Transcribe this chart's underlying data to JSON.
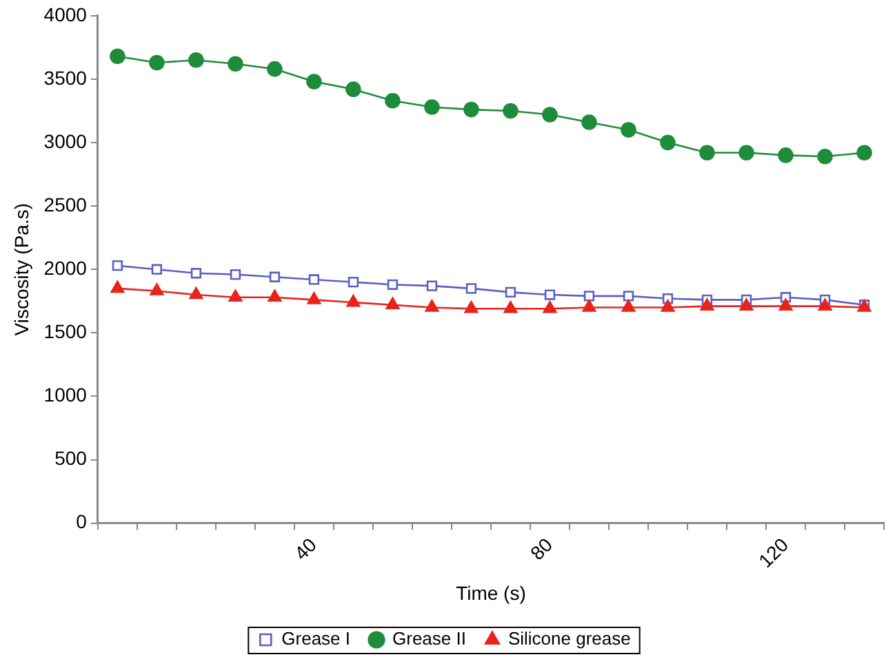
{
  "chart_data": {
    "type": "line",
    "xlabel": "Time (s)",
    "ylabel": "Viscosity (Pa.s)",
    "categories": [
      null,
      null,
      null,
      null,
      null,
      "40",
      null,
      null,
      null,
      null,
      null,
      "80",
      null,
      null,
      null,
      null,
      null,
      "120",
      null,
      null
    ],
    "ylim": [
      0,
      4000
    ],
    "yticks": [
      0,
      500,
      1000,
      1500,
      2000,
      2500,
      3000,
      3500,
      4000
    ],
    "grid": false,
    "legend": "bottom",
    "series": [
      {
        "name": "Grease I",
        "color": "#5a5fc4",
        "marker": "square",
        "values": [
          2030,
          2000,
          1970,
          1960,
          1940,
          1920,
          1900,
          1880,
          1870,
          1850,
          1820,
          1800,
          1790,
          1790,
          1770,
          1760,
          1760,
          1780,
          1760,
          1720
        ]
      },
      {
        "name": "Grease II",
        "color": "#1e8c3a",
        "marker": "circle",
        "values": [
          3680,
          3630,
          3650,
          3620,
          3580,
          3480,
          3420,
          3330,
          3280,
          3260,
          3250,
          3220,
          3160,
          3100,
          3000,
          2920,
          2920,
          2900,
          2890,
          2920
        ]
      },
      {
        "name": "Silicone grease",
        "color": "#e8231c",
        "marker": "triangle",
        "values": [
          1850,
          1830,
          1800,
          1780,
          1780,
          1760,
          1740,
          1720,
          1700,
          1690,
          1690,
          1690,
          1700,
          1700,
          1700,
          1710,
          1710,
          1710,
          1710,
          1700
        ]
      }
    ]
  }
}
